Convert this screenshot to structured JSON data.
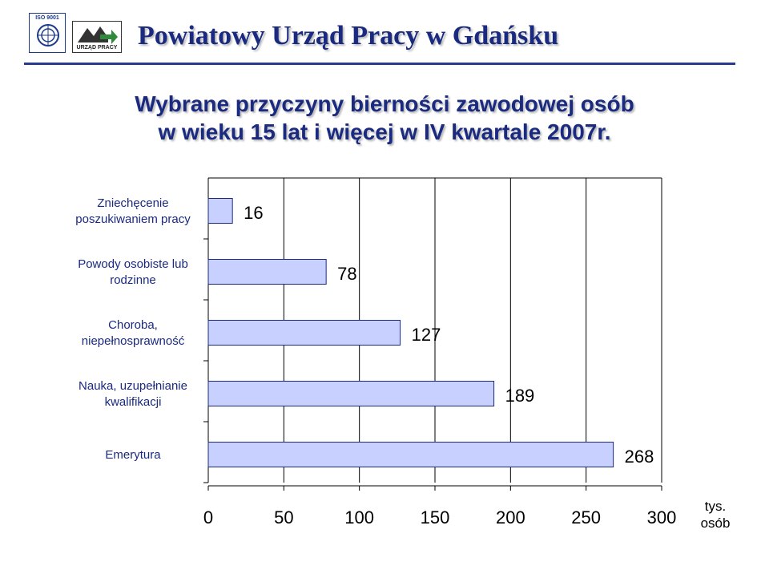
{
  "header": {
    "title": "Powiatowy Urząd Pracy w Gdańsku",
    "iso_logo_text": "ISO 9001",
    "up_logo_text": "URZĄD PRACY"
  },
  "colors": {
    "title": "#1a2a80",
    "bar_fill": "#c8d0ff",
    "bar_stroke": "#1a2a80",
    "grid": "#000000"
  },
  "chart_data": {
    "type": "bar",
    "orientation": "horizontal",
    "title": [
      "Wybrane przyczyny bierności zawodowej osób",
      "w wieku 15 lat i więcej w IV kwartale 2007r."
    ],
    "categories": [
      [
        "Zniechęcenie",
        "poszukiwaniem pracy"
      ],
      [
        "Powody osobiste lub",
        "rodzinne"
      ],
      [
        "Choroba,",
        "niepełnosprawność"
      ],
      [
        "Nauka, uzupełnianie",
        "kwalifikacji"
      ],
      [
        "Emerytura"
      ]
    ],
    "values": [
      16,
      78,
      127,
      189,
      268
    ],
    "value_labels": [
      "16",
      "78",
      "127",
      "189",
      "268"
    ],
    "x_ticks": [
      0,
      50,
      100,
      150,
      200,
      250,
      300
    ],
    "x_tick_labels": [
      "0",
      "50",
      "100",
      "150",
      "200",
      "250",
      "300"
    ],
    "xlim": [
      0,
      300
    ],
    "unit_label": [
      "tys.",
      "osób"
    ],
    "grid": "vertical",
    "legend": "none"
  }
}
